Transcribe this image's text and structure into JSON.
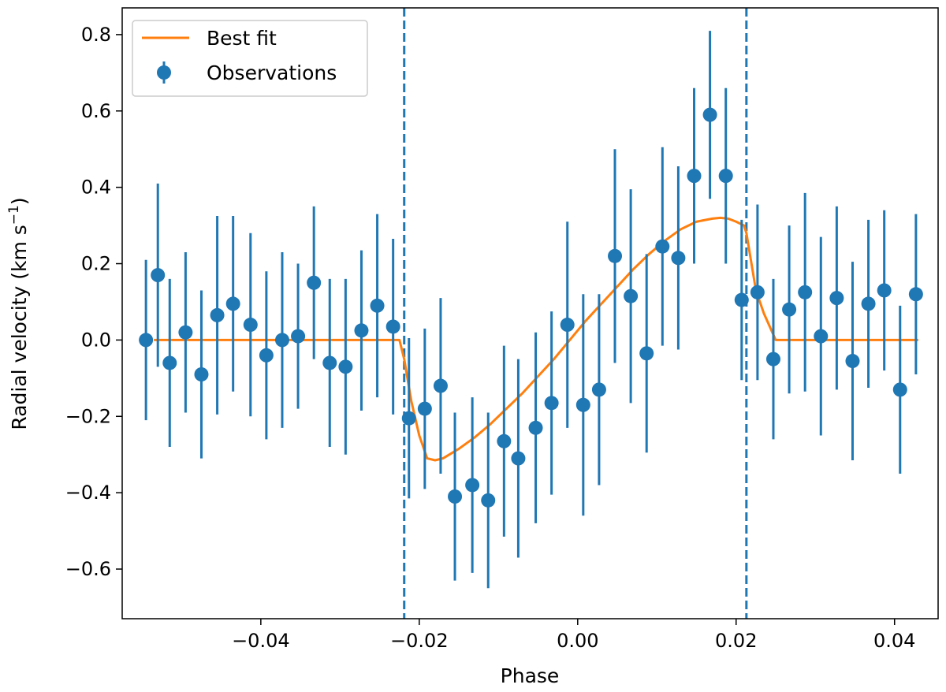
{
  "chart_data": {
    "type": "scatter",
    "title": "",
    "xlabel": "Phase",
    "ylabel": "Radial velocity (km s",
    "ylabel_sup": "−1",
    "ylabel_tail": ")",
    "xlim": [
      -0.0575,
      0.0455
    ],
    "ylim": [
      -0.73,
      0.87
    ],
    "x_ticks": [
      -0.04,
      -0.02,
      0.0,
      0.02,
      0.04
    ],
    "x_tick_labels": [
      "−0.04",
      "−0.02",
      "0.00",
      "0.02",
      "0.04"
    ],
    "y_ticks": [
      -0.6,
      -0.4,
      -0.2,
      0.0,
      0.2,
      0.4,
      0.6,
      0.8
    ],
    "y_tick_labels": [
      "−0.6",
      "−0.4",
      "−0.2",
      "0.0",
      "0.2",
      "0.4",
      "0.6",
      "0.8"
    ],
    "grid": false,
    "legend_position": "top-left",
    "vlines": [
      -0.0219,
      0.0213
    ],
    "colors": {
      "observations": "#1f77b4",
      "best_fit": "#ff7f0e",
      "vline": "#1f77b4"
    },
    "series": [
      {
        "name": "Best fit",
        "kind": "line",
        "x": [
          -0.0535,
          -0.0225,
          -0.0219,
          -0.021,
          -0.02,
          -0.019,
          -0.018,
          -0.017,
          -0.015,
          -0.013,
          -0.011,
          -0.009,
          -0.007,
          -0.005,
          -0.003,
          -0.001,
          0.001,
          0.003,
          0.005,
          0.007,
          0.009,
          0.011,
          0.013,
          0.015,
          0.017,
          0.018,
          0.019,
          0.02,
          0.021,
          0.0213,
          0.0225,
          0.0235,
          0.025,
          0.043
        ],
        "y": [
          0.0,
          0.0,
          -0.05,
          -0.16,
          -0.25,
          -0.31,
          -0.315,
          -0.31,
          -0.285,
          -0.255,
          -0.22,
          -0.18,
          -0.14,
          -0.095,
          -0.05,
          0.0,
          0.05,
          0.095,
          0.14,
          0.185,
          0.225,
          0.26,
          0.29,
          0.31,
          0.318,
          0.32,
          0.318,
          0.31,
          0.3,
          0.28,
          0.13,
          0.07,
          0.0,
          0.0
        ]
      },
      {
        "name": "Observations",
        "kind": "errorbar",
        "x": [
          -0.0545,
          -0.053,
          -0.0515,
          -0.0495,
          -0.0475,
          -0.0455,
          -0.0435,
          -0.0413,
          -0.0393,
          -0.0373,
          -0.0353,
          -0.0333,
          -0.0313,
          -0.0293,
          -0.0273,
          -0.0253,
          -0.0233,
          -0.0213,
          -0.0193,
          -0.0173,
          -0.0155,
          -0.0133,
          -0.0113,
          -0.0093,
          -0.0075,
          -0.0053,
          -0.0033,
          -0.0013,
          0.0007,
          0.0027,
          0.0047,
          0.0067,
          0.0087,
          0.0107,
          0.0127,
          0.0147,
          0.0167,
          0.0187,
          0.0207,
          0.0227,
          0.0247,
          0.0267,
          0.0287,
          0.0307,
          0.0327,
          0.0347,
          0.0367,
          0.0387,
          0.0407,
          0.0427
        ],
        "y": [
          0.0,
          0.17,
          -0.06,
          0.02,
          -0.09,
          0.065,
          0.095,
          0.04,
          -0.04,
          0.0,
          0.01,
          0.15,
          -0.06,
          -0.07,
          0.025,
          0.09,
          0.035,
          -0.205,
          -0.18,
          -0.12,
          -0.41,
          -0.38,
          -0.42,
          -0.265,
          -0.31,
          -0.23,
          -0.165,
          0.04,
          -0.17,
          -0.13,
          0.22,
          0.115,
          -0.035,
          0.245,
          0.215,
          0.43,
          0.59,
          0.43,
          0.105,
          0.125,
          -0.05,
          0.08,
          0.125,
          0.01,
          0.11,
          -0.055,
          0.095,
          0.13,
          -0.13,
          0.12
        ],
        "yerr": [
          0.21,
          0.24,
          0.22,
          0.21,
          0.22,
          0.26,
          0.23,
          0.24,
          0.22,
          0.23,
          0.19,
          0.2,
          0.22,
          0.23,
          0.21,
          0.24,
          0.23,
          0.21,
          0.21,
          0.23,
          0.22,
          0.23,
          0.23,
          0.25,
          0.26,
          0.25,
          0.24,
          0.27,
          0.29,
          0.25,
          0.28,
          0.28,
          0.26,
          0.26,
          0.24,
          0.23,
          0.22,
          0.23,
          0.21,
          0.23,
          0.21,
          0.22,
          0.26,
          0.26,
          0.24,
          0.26,
          0.22,
          0.21,
          0.22,
          0.21
        ]
      }
    ]
  }
}
